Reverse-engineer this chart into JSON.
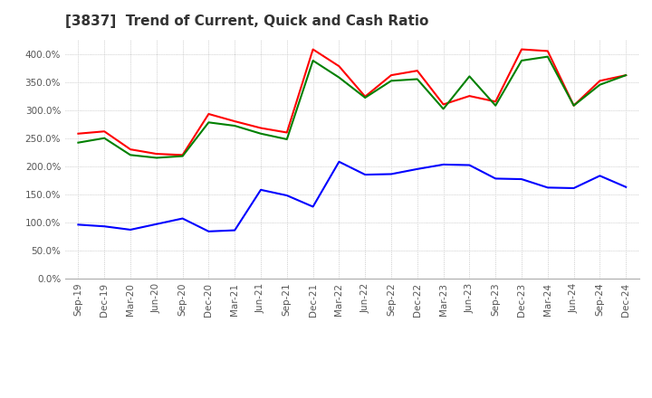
{
  "title": "[3837]  Trend of Current, Quick and Cash Ratio",
  "x_labels": [
    "Sep-19",
    "Dec-19",
    "Mar-20",
    "Jun-20",
    "Sep-20",
    "Dec-20",
    "Mar-21",
    "Jun-21",
    "Sep-21",
    "Dec-21",
    "Mar-22",
    "Jun-22",
    "Sep-22",
    "Dec-22",
    "Mar-23",
    "Jun-23",
    "Sep-23",
    "Dec-23",
    "Mar-24",
    "Jun-24",
    "Sep-24",
    "Dec-24"
  ],
  "current_ratio": [
    258,
    262,
    230,
    222,
    220,
    293,
    280,
    268,
    260,
    408,
    378,
    324,
    362,
    370,
    310,
    325,
    315,
    408,
    405,
    308,
    352,
    362
  ],
  "quick_ratio": [
    242,
    250,
    220,
    215,
    218,
    278,
    272,
    258,
    248,
    388,
    358,
    322,
    352,
    355,
    302,
    360,
    308,
    388,
    395,
    308,
    345,
    362
  ],
  "cash_ratio": [
    96,
    93,
    87,
    97,
    107,
    84,
    86,
    158,
    148,
    128,
    208,
    185,
    186,
    195,
    203,
    202,
    178,
    177,
    162,
    161,
    183,
    163
  ],
  "current_color": "#FF0000",
  "quick_color": "#008000",
  "cash_color": "#0000FF",
  "ylim": [
    0,
    425
  ],
  "yticks": [
    0,
    50,
    100,
    150,
    200,
    250,
    300,
    350,
    400
  ],
  "background_color": "#ffffff",
  "grid_color": "#bbbbbb",
  "title_fontsize": 11,
  "tick_fontsize": 7.5,
  "legend_fontsize": 8.5
}
